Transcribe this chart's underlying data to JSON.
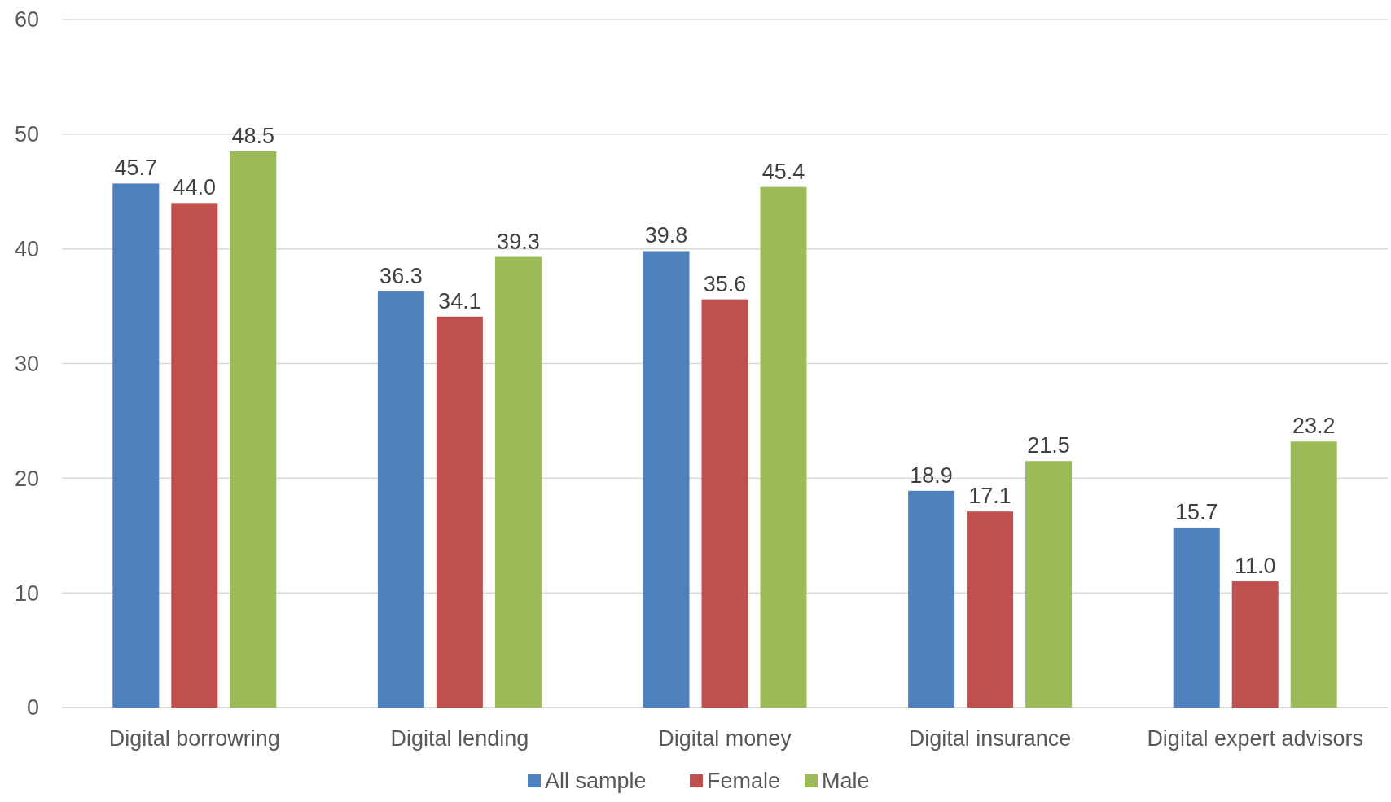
{
  "chart_data": {
    "type": "bar",
    "categories": [
      "Digital borrowring",
      "Digital lending",
      "Digital money",
      "Digital insurance",
      "Digital expert advisors"
    ],
    "series": [
      {
        "name": "All sample",
        "color": "#4f81bd",
        "values": [
          45.7,
          36.3,
          39.8,
          18.9,
          15.7
        ],
        "value_labels": [
          "45.7",
          "36.3",
          "39.8",
          "18.9",
          "15.7"
        ]
      },
      {
        "name": "Female",
        "color": "#c0504d",
        "values": [
          44.0,
          34.1,
          35.6,
          17.1,
          11.0
        ],
        "value_labels": [
          "44.0",
          "34.1",
          "35.6",
          "17.1",
          "11.0"
        ]
      },
      {
        "name": "Male",
        "color": "#9bbb59",
        "values": [
          48.5,
          39.3,
          45.4,
          21.5,
          23.2
        ],
        "value_labels": [
          "48.5",
          "39.3",
          "45.4",
          "21.5",
          "23.2"
        ]
      }
    ],
    "ylim": [
      0,
      60
    ],
    "yticks": [
      0,
      10,
      20,
      30,
      40,
      50,
      60
    ],
    "grid": "y",
    "legend": "bottom"
  }
}
